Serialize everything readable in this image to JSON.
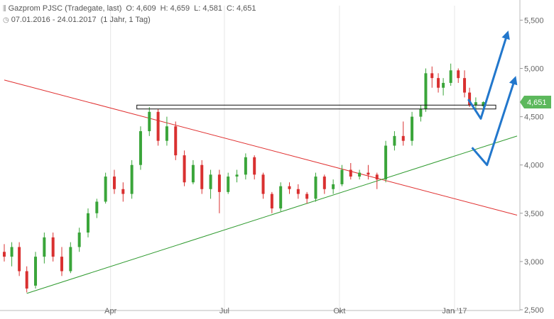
{
  "header": {
    "instrument": "Gazprom PJSC (Tradegate, last)",
    "open": "O: 4,609",
    "high": "H: 4,659",
    "low": "L: 4,581",
    "close": "C: 4,651",
    "range": "07.01.2016 - 24.01.2017",
    "period": "(1 Jahr, 1 Tag)",
    "chart_icon": "candlestick-icon",
    "clock_icon": "clock-icon"
  },
  "chart_data": {
    "type": "candlestick",
    "x_tick_labels": [
      "Apr",
      "Jul",
      "Okt",
      "Jan '17"
    ],
    "x_tick_dates": [
      "2016-04-01",
      "2016-07-01",
      "2016-10-01",
      "2017-01-01"
    ],
    "x_range": [
      "2016-01-07",
      "2017-02-20"
    ],
    "y_tick_labels": [
      "5,500",
      "5,000",
      "4,500",
      "4,000",
      "3,500",
      "3,000",
      "2,500"
    ],
    "y_ticks": [
      5.5,
      5.0,
      4.5,
      4.0,
      3.5,
      3.0,
      2.5
    ],
    "ylim": [
      2.5,
      5.65
    ],
    "last_price": 4.651,
    "last_price_label": "4,651",
    "grid": "vertical",
    "colors": {
      "up": "#3aa53a",
      "down": "#d93030",
      "badge": "#5cb85c",
      "resistance": "#e03030",
      "support": "#2e9a2e",
      "arrows": "#2277cc"
    },
    "ohlc": [
      [
        "2016-01-07",
        3.1,
        3.18,
        3.0,
        3.05
      ],
      [
        "2016-01-13",
        3.05,
        3.2,
        2.95,
        3.15
      ],
      [
        "2016-01-19",
        3.15,
        3.2,
        2.85,
        2.9
      ],
      [
        "2016-01-25",
        2.9,
        2.95,
        2.68,
        2.72
      ],
      [
        "2016-02-01",
        2.75,
        3.1,
        2.72,
        3.05
      ],
      [
        "2016-02-08",
        3.05,
        3.3,
        2.98,
        3.25
      ],
      [
        "2016-02-15",
        3.25,
        3.3,
        3.0,
        3.05
      ],
      [
        "2016-02-22",
        3.05,
        3.15,
        2.85,
        2.9
      ],
      [
        "2016-02-29",
        2.9,
        3.2,
        2.88,
        3.15
      ],
      [
        "2016-03-07",
        3.15,
        3.35,
        3.1,
        3.3
      ],
      [
        "2016-03-14",
        3.3,
        3.55,
        3.25,
        3.5
      ],
      [
        "2016-03-21",
        3.5,
        3.65,
        3.45,
        3.62
      ],
      [
        "2016-03-28",
        3.62,
        3.92,
        3.6,
        3.88
      ],
      [
        "2016-04-04",
        3.88,
        3.95,
        3.7,
        3.75
      ],
      [
        "2016-04-11",
        3.75,
        3.82,
        3.62,
        3.7
      ],
      [
        "2016-04-18",
        3.7,
        4.05,
        3.65,
        4.0
      ],
      [
        "2016-04-25",
        4.0,
        4.4,
        3.95,
        4.35
      ],
      [
        "2016-05-02",
        4.35,
        4.6,
        4.3,
        4.55
      ],
      [
        "2016-05-09",
        4.55,
        4.58,
        4.2,
        4.25
      ],
      [
        "2016-05-16",
        4.25,
        4.5,
        4.2,
        4.4
      ],
      [
        "2016-05-23",
        4.4,
        4.45,
        4.05,
        4.1
      ],
      [
        "2016-05-30",
        4.1,
        4.15,
        3.78,
        3.82
      ],
      [
        "2016-06-06",
        3.82,
        4.05,
        3.8,
        4.0
      ],
      [
        "2016-06-13",
        4.0,
        4.05,
        3.7,
        3.75
      ],
      [
        "2016-06-20",
        3.75,
        3.95,
        3.65,
        3.9
      ],
      [
        "2016-06-27",
        3.9,
        3.95,
        3.5,
        3.72
      ],
      [
        "2016-07-04",
        3.72,
        3.92,
        3.7,
        3.88
      ],
      [
        "2016-07-11",
        3.88,
        3.95,
        3.82,
        3.9
      ],
      [
        "2016-07-18",
        3.9,
        4.12,
        3.85,
        4.08
      ],
      [
        "2016-07-25",
        4.08,
        4.1,
        3.85,
        3.9
      ],
      [
        "2016-08-01",
        3.9,
        3.92,
        3.65,
        3.7
      ],
      [
        "2016-08-08",
        3.7,
        3.72,
        3.5,
        3.55
      ],
      [
        "2016-08-15",
        3.55,
        3.82,
        3.52,
        3.78
      ],
      [
        "2016-08-22",
        3.78,
        3.82,
        3.7,
        3.75
      ],
      [
        "2016-08-29",
        3.75,
        3.8,
        3.65,
        3.7
      ],
      [
        "2016-09-05",
        3.7,
        3.72,
        3.6,
        3.65
      ],
      [
        "2016-09-12",
        3.65,
        3.92,
        3.62,
        3.88
      ],
      [
        "2016-09-19",
        3.88,
        3.9,
        3.7,
        3.75
      ],
      [
        "2016-09-26",
        3.75,
        3.85,
        3.7,
        3.8
      ],
      [
        "2016-10-03",
        3.8,
        4.0,
        3.78,
        3.95
      ],
      [
        "2016-10-10",
        3.95,
        4.02,
        3.85,
        3.88
      ],
      [
        "2016-10-17",
        3.88,
        3.95,
        3.85,
        3.92
      ],
      [
        "2016-10-24",
        3.92,
        4.0,
        3.85,
        3.9
      ],
      [
        "2016-10-31",
        3.9,
        3.92,
        3.75,
        3.85
      ],
      [
        "2016-11-07",
        3.85,
        4.25,
        3.82,
        4.2
      ],
      [
        "2016-11-14",
        4.2,
        4.35,
        4.15,
        4.3
      ],
      [
        "2016-11-21",
        4.3,
        4.45,
        4.2,
        4.25
      ],
      [
        "2016-11-28",
        4.25,
        4.55,
        4.2,
        4.5
      ],
      [
        "2016-12-05",
        4.5,
        4.62,
        4.45,
        4.58
      ],
      [
        "2016-12-09",
        4.58,
        5.0,
        4.55,
        4.95
      ],
      [
        "2016-12-14",
        4.95,
        5.02,
        4.8,
        4.9
      ],
      [
        "2016-12-19",
        4.9,
        4.95,
        4.75,
        4.8
      ],
      [
        "2016-12-23",
        4.8,
        4.9,
        4.72,
        4.85
      ],
      [
        "2016-12-29",
        4.85,
        5.05,
        4.82,
        4.98
      ],
      [
        "2017-01-04",
        4.98,
        5.0,
        4.85,
        4.9
      ],
      [
        "2017-01-09",
        4.9,
        4.98,
        4.7,
        4.75
      ],
      [
        "2017-01-13",
        4.75,
        4.8,
        4.6,
        4.62
      ],
      [
        "2017-01-18",
        4.62,
        4.7,
        4.58,
        4.65
      ],
      [
        "2017-01-24",
        4.609,
        4.659,
        4.581,
        4.651
      ]
    ],
    "annotations": {
      "resistance_line": [
        [
          "2016-01-07",
          4.88
        ],
        [
          "2017-02-20",
          3.48
        ]
      ],
      "support_line": [
        [
          "2016-01-25",
          2.67
        ],
        [
          "2017-02-20",
          4.3
        ]
      ],
      "horizontal_zone": {
        "from": "2016-04-22",
        "to": "2017-02-03",
        "top": 4.62,
        "bottom": 4.58
      },
      "projection_arrows": [
        [
          [
            "2017-01-12",
            4.68
          ],
          [
            "2017-01-22",
            4.48
          ],
          [
            "2017-02-12",
            5.35
          ]
        ],
        [
          [
            "2017-01-15",
            4.18
          ],
          [
            "2017-01-27",
            4.0
          ],
          [
            "2017-02-18",
            4.88
          ]
        ]
      ]
    }
  }
}
